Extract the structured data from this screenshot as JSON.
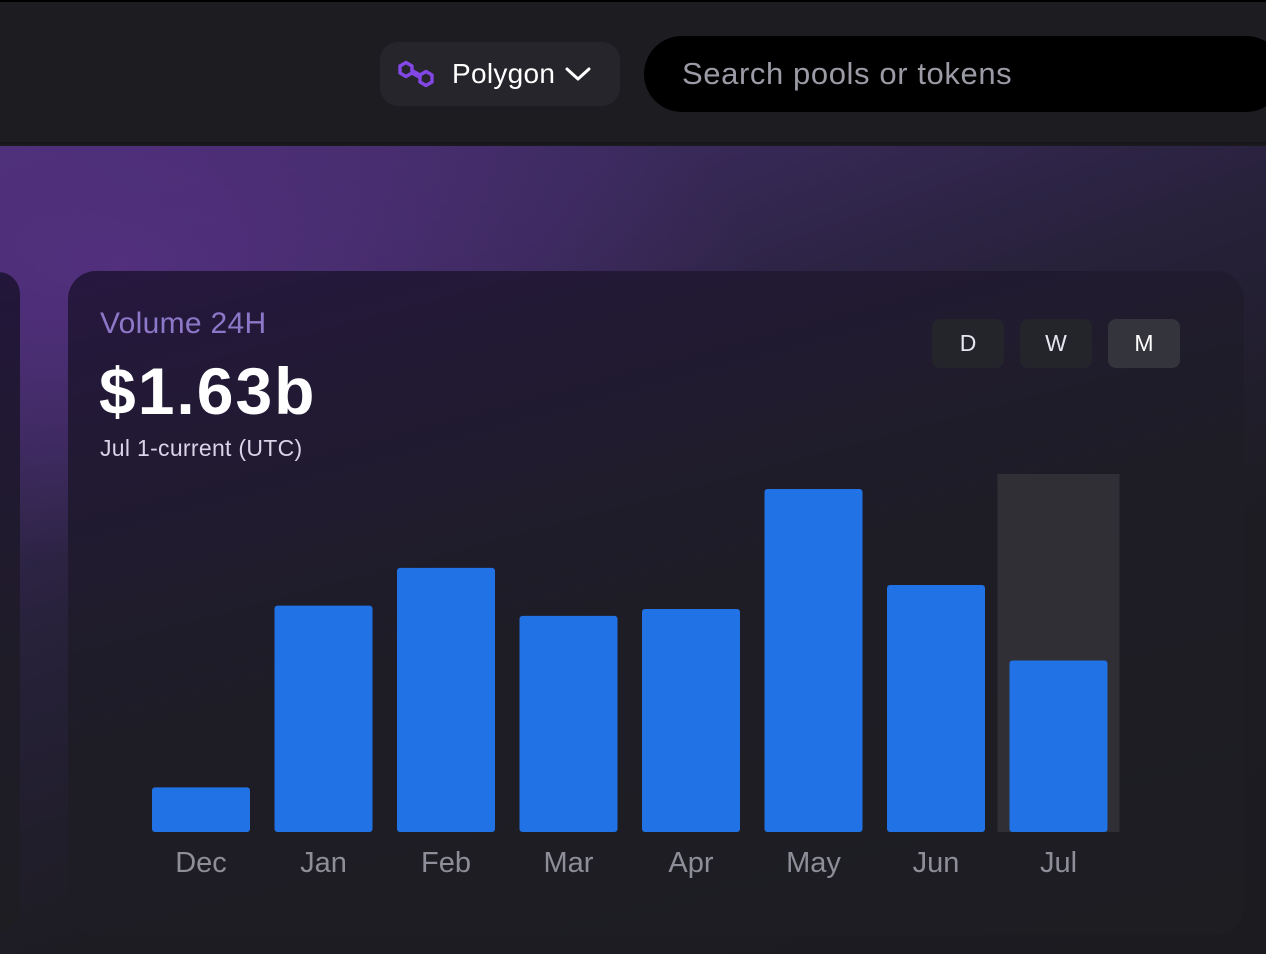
{
  "header": {
    "network": {
      "label": "Polygon",
      "icon": "polygon-logo-icon",
      "accent": "#8247e5"
    },
    "search": {
      "placeholder": "Search pools or tokens",
      "value": ""
    }
  },
  "card": {
    "label": "Volume 24H",
    "value": "$1.63b",
    "subtitle": "Jul 1-current (UTC)",
    "toggles": [
      {
        "label": "D",
        "active": false
      },
      {
        "label": "W",
        "active": false
      },
      {
        "label": "M",
        "active": true
      }
    ]
  },
  "chart_data": {
    "type": "bar",
    "categories": [
      "Dec",
      "Jan",
      "Feb",
      "Mar",
      "Apr",
      "May",
      "Jun",
      "Jul"
    ],
    "values": [
      0.13,
      0.66,
      0.77,
      0.63,
      0.65,
      1.0,
      0.72,
      0.5
    ],
    "highlighted_category": "Jul",
    "bar_color": "#2172e5",
    "highlight_color": "#2f2f35",
    "grid": false
  }
}
